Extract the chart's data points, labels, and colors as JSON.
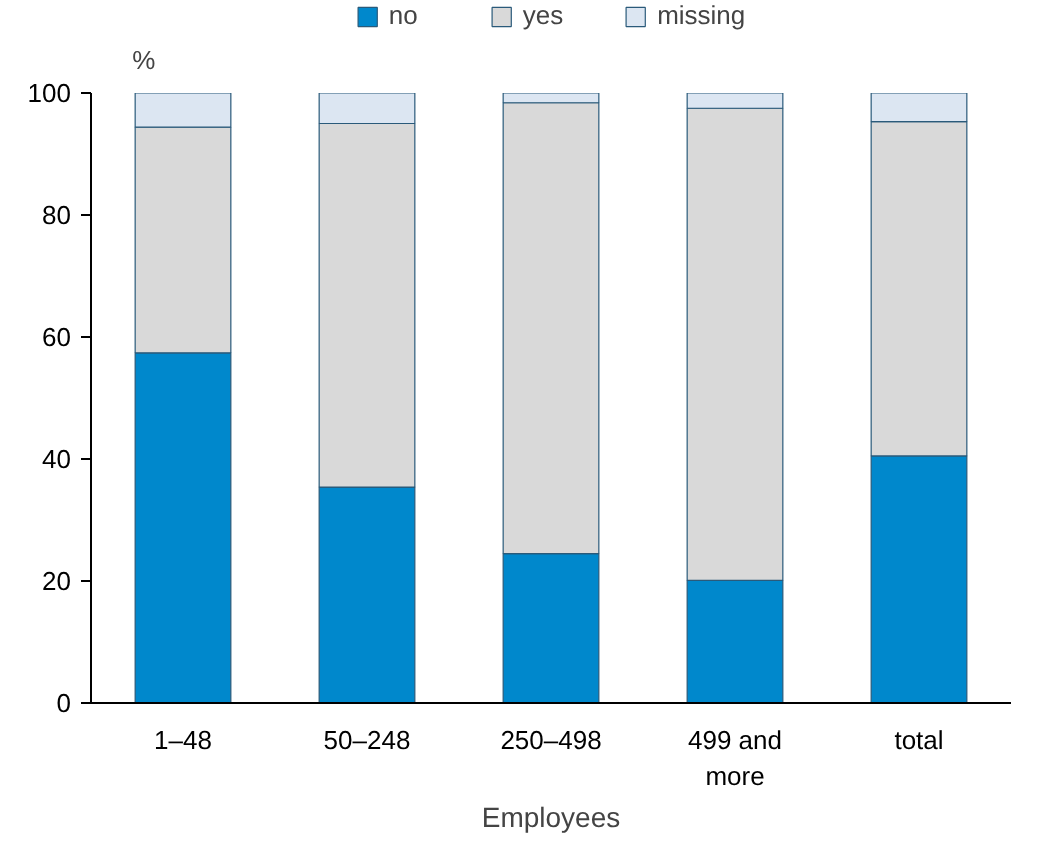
{
  "chart_data": {
    "type": "bar",
    "stacked": true,
    "xlabel": "Employees",
    "ylabel": "%",
    "categories": [
      "1–48",
      "50–248",
      "250–498",
      "499 and more",
      "total"
    ],
    "series": [
      {
        "name": "no",
        "color": "#0088cc",
        "values": [
          57.4,
          35.4,
          24.5,
          20.1,
          40.5
        ]
      },
      {
        "name": "yes",
        "color": "#d9d9d9",
        "values": [
          37.0,
          59.6,
          73.9,
          77.4,
          54.8
        ]
      },
      {
        "name": "missing",
        "color": "#dce6f2",
        "values": [
          5.6,
          5.0,
          1.6,
          2.5,
          4.7
        ]
      }
    ],
    "ylim": [
      0,
      100
    ],
    "yticks": [
      0,
      20,
      40,
      60,
      80,
      100
    ],
    "grid": false,
    "legend": "top"
  }
}
